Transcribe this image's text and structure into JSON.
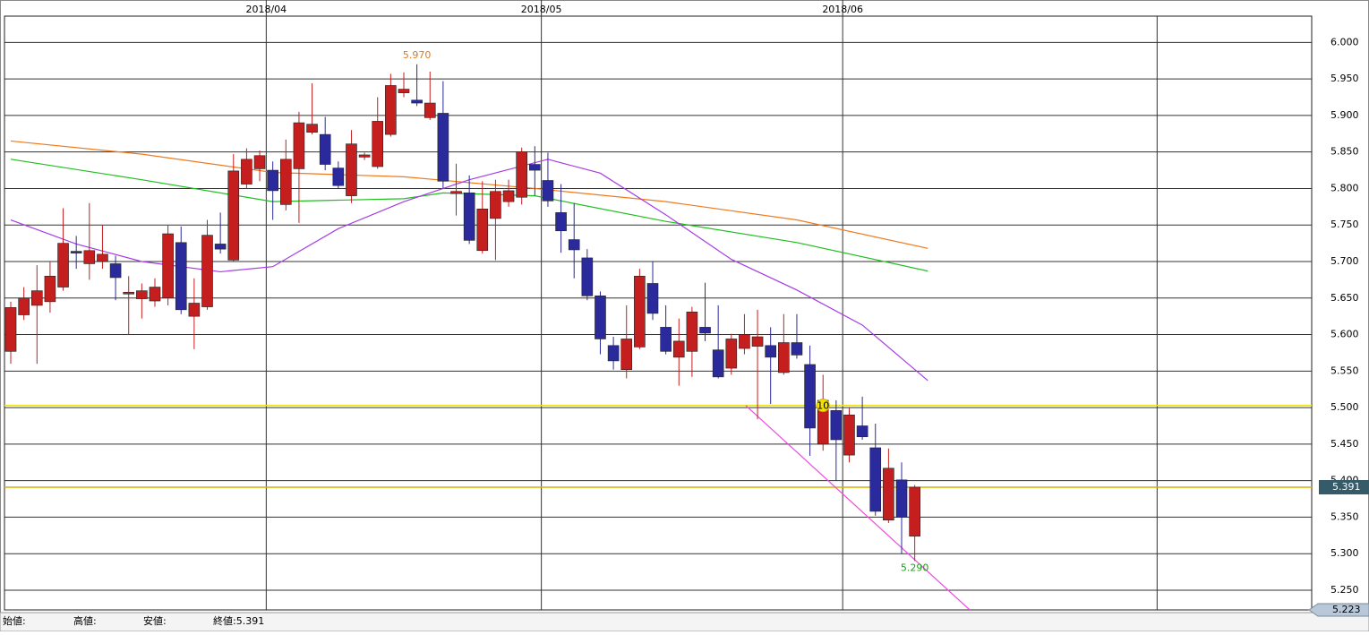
{
  "chart_data": {
    "type": "candlestick",
    "xlim": [
      -0.48,
      99.3
    ],
    "ylim": [
      5.223,
      6.036
    ],
    "xticks": [
      {
        "value": 19.5,
        "label": "2018/04"
      },
      {
        "value": 40.5,
        "label": "2018/05"
      },
      {
        "value": 63.5,
        "label": "2018/06"
      }
    ],
    "extra_xgrid": [
      87.5
    ],
    "yticks": [
      {
        "value": 5.25,
        "label": "5.250"
      },
      {
        "value": 5.3,
        "label": "5.300"
      },
      {
        "value": 5.35,
        "label": "5.350"
      },
      {
        "value": 5.4,
        "label": "5.400"
      },
      {
        "value": 5.45,
        "label": "5.450"
      },
      {
        "value": 5.5,
        "label": "5.500"
      },
      {
        "value": 5.55,
        "label": "5.550"
      },
      {
        "value": 5.6,
        "label": "5.600"
      },
      {
        "value": 5.65,
        "label": "5.650"
      },
      {
        "value": 5.7,
        "label": "5.700"
      },
      {
        "value": 5.75,
        "label": "5.750"
      },
      {
        "value": 5.8,
        "label": "5.800"
      },
      {
        "value": 5.85,
        "label": "5.850"
      },
      {
        "value": 5.9,
        "label": "5.900"
      },
      {
        "value": 5.95,
        "label": "5.950"
      },
      {
        "value": 6.0,
        "label": "6.000"
      }
    ],
    "up_color": "#c41e1e",
    "down_color": "#2a2a9c",
    "open": [
      5.577,
      5.627,
      5.64,
      5.645,
      5.665,
      5.714,
      5.697,
      5.7,
      5.697,
      5.656,
      5.649,
      5.646,
      5.65,
      5.726,
      5.625,
      5.638,
      5.724,
      5.702,
      5.806,
      5.827,
      5.825,
      5.778,
      5.827,
      5.877,
      5.874,
      5.828,
      5.79,
      5.843,
      5.83,
      5.874,
      5.931,
      5.921,
      5.897,
      5.903,
      5.793,
      5.794,
      5.715,
      5.759,
      5.782,
      5.788,
      5.833,
      5.811,
      5.767,
      5.73,
      5.705,
      5.653,
      5.585,
      5.552,
      5.583,
      5.67,
      5.61,
      5.569,
      5.577,
      5.61,
      5.579,
      5.554,
      5.581,
      5.584,
      5.585,
      5.548,
      5.589,
      5.559,
      5.45,
      5.496,
      5.435,
      5.475,
      5.445,
      5.346,
      5.401,
      5.324
    ],
    "high": [
      5.645,
      5.665,
      5.695,
      5.7,
      5.773,
      5.735,
      5.78,
      5.75,
      5.708,
      5.68,
      5.67,
      5.677,
      5.75,
      5.748,
      5.677,
      5.757,
      5.767,
      5.847,
      5.855,
      5.852,
      5.837,
      5.867,
      5.905,
      5.944,
      5.898,
      5.837,
      5.88,
      5.849,
      5.925,
      5.957,
      5.959,
      5.97,
      5.96,
      5.947,
      5.834,
      5.818,
      5.81,
      5.812,
      5.812,
      5.856,
      5.858,
      5.849,
      5.806,
      5.78,
      5.717,
      5.659,
      5.597,
      5.64,
      5.69,
      5.7,
      5.64,
      5.622,
      5.638,
      5.671,
      5.64,
      5.601,
      5.628,
      5.634,
      5.61,
      5.628,
      5.628,
      5.585,
      5.545,
      5.51,
      5.5,
      5.515,
      5.478,
      5.444,
      5.425,
      5.394
    ],
    "low": [
      5.56,
      5.62,
      5.56,
      5.63,
      5.66,
      5.69,
      5.675,
      5.69,
      5.647,
      5.6,
      5.622,
      5.638,
      5.64,
      5.628,
      5.58,
      5.634,
      5.711,
      5.7,
      5.8,
      5.81,
      5.757,
      5.77,
      5.753,
      5.874,
      5.825,
      5.8,
      5.78,
      5.839,
      5.827,
      5.871,
      5.925,
      5.913,
      5.894,
      5.8,
      5.763,
      5.724,
      5.711,
      5.702,
      5.775,
      5.778,
      5.79,
      5.775,
      5.712,
      5.677,
      5.647,
      5.573,
      5.552,
      5.54,
      5.58,
      5.62,
      5.573,
      5.53,
      5.542,
      5.591,
      5.54,
      5.545,
      5.573,
      5.484,
      5.505,
      5.545,
      5.567,
      5.434,
      5.441,
      5.4,
      5.425,
      5.456,
      5.352,
      5.342,
      5.3,
      5.29
    ],
    "close": [
      5.637,
      5.65,
      5.66,
      5.68,
      5.725,
      5.712,
      5.715,
      5.71,
      5.678,
      5.658,
      5.66,
      5.665,
      5.738,
      5.634,
      5.643,
      5.736,
      5.717,
      5.824,
      5.84,
      5.845,
      5.797,
      5.84,
      5.89,
      5.888,
      5.833,
      5.804,
      5.861,
      5.846,
      5.892,
      5.941,
      5.936,
      5.917,
      5.917,
      5.81,
      5.796,
      5.729,
      5.772,
      5.796,
      5.797,
      5.85,
      5.825,
      5.783,
      5.742,
      5.716,
      5.653,
      5.594,
      5.564,
      5.594,
      5.68,
      5.629,
      5.577,
      5.591,
      5.631,
      5.602,
      5.542,
      5.594,
      5.6,
      5.597,
      5.569,
      5.589,
      5.572,
      5.472,
      5.51,
      5.456,
      5.49,
      5.46,
      5.358,
      5.417,
      5.35,
      5.391
    ],
    "lines": [
      {
        "color": "#f07a1e",
        "x": [
          0,
          10,
          20,
          30,
          40,
          50,
          60,
          70
        ],
        "values": [
          5.865,
          5.847,
          5.822,
          5.816,
          5.8,
          5.782,
          5.757,
          5.718
        ]
      },
      {
        "color": "#1fbf1f",
        "x": [
          0,
          10,
          20,
          30,
          33,
          40,
          50,
          60,
          70
        ],
        "values": [
          5.84,
          5.812,
          5.782,
          5.786,
          5.794,
          5.79,
          5.755,
          5.726,
          5.687
        ]
      },
      {
        "color": "#a53ce6",
        "x": [
          0,
          5,
          10,
          16,
          20,
          25,
          30,
          35,
          41,
          45,
          50,
          55,
          60,
          65,
          70
        ],
        "values": [
          5.757,
          5.724,
          5.7,
          5.686,
          5.693,
          5.745,
          5.782,
          5.812,
          5.84,
          5.821,
          5.764,
          5.703,
          5.661,
          5.613,
          5.537
        ]
      },
      {
        "color": "#f04ae0",
        "x": [
          56.1,
          73.2
        ],
        "values": [
          5.503,
          5.223
        ]
      }
    ],
    "hlines": [
      {
        "value": 5.503,
        "color": "#e8e020"
      },
      {
        "value": 5.391,
        "color": "#d9b000"
      }
    ],
    "annotations": [
      {
        "text": "5.970",
        "x": 31,
        "y": 5.97,
        "color": "#e07a1e"
      },
      {
        "text": "5.290",
        "x": 69,
        "y": 5.29,
        "color": "#1a9e1a"
      }
    ],
    "marker": {
      "text": "10",
      "x": 62,
      "y": 5.503
    },
    "price_tag": {
      "value": 5.391,
      "label": "5.391"
    },
    "bottom_tag": {
      "value": 5.223,
      "label": "5.223"
    },
    "footer": [
      "始値:",
      "高値:",
      "安値:",
      "終値:5.391"
    ]
  }
}
